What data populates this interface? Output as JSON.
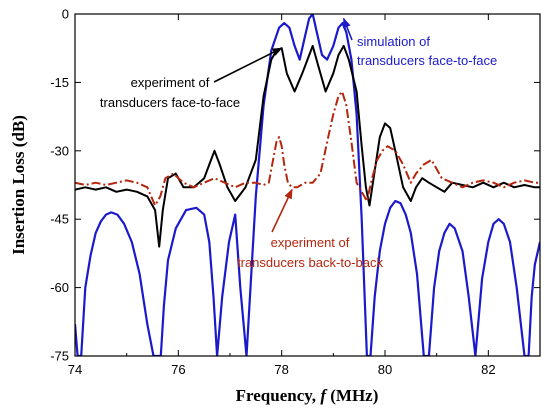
{
  "chart_data": {
    "type": "line",
    "xlabel_prefix": "Frequency, ",
    "xlabel_var": "f",
    "xlabel_suffix": " (MHz)",
    "ylabel": "Insertion Loss (dB)",
    "xlim": [
      74,
      83
    ],
    "ylim": [
      -75,
      0
    ],
    "xticks": [
      74,
      76,
      78,
      80,
      82
    ],
    "yticks": [
      0,
      -15,
      -30,
      -45,
      -60,
      -75
    ],
    "grid": false,
    "annotations": [
      {
        "line1": "simulation of",
        "line2": "transducers face-to-face",
        "color": "#1a1acc",
        "points_to": [
          79.2,
          -1
        ]
      },
      {
        "line1": "experiment of",
        "line2": "transducers face-to-face",
        "color": "#000000",
        "points_to": [
          78.0,
          -7.5
        ]
      },
      {
        "line1": "experiment of",
        "line2": "transducers back-to-back",
        "color": "#b5260f",
        "points_to": [
          78.2,
          -38.5
        ]
      }
    ],
    "series": [
      {
        "color": "#1a1acc",
        "style": "solid",
        "x": [
          74.0,
          74.05,
          74.12,
          74.2,
          74.3,
          74.4,
          74.5,
          74.6,
          74.7,
          74.82,
          74.95,
          75.1,
          75.25,
          75.4,
          75.52,
          75.6,
          75.66,
          75.72,
          75.8,
          75.95,
          76.15,
          76.35,
          76.5,
          76.6,
          76.68,
          76.75,
          76.85,
          76.98,
          77.1,
          77.2,
          77.32,
          77.5,
          77.65,
          77.8,
          77.95,
          78.05,
          78.15,
          78.25,
          78.35,
          78.45,
          78.53,
          78.6,
          78.68,
          78.78,
          78.88,
          79.0,
          79.1,
          79.18,
          79.25,
          79.35,
          79.45,
          79.55,
          79.65,
          79.72,
          79.8,
          79.9,
          80.0,
          80.1,
          80.2,
          80.3,
          80.4,
          80.5,
          80.62,
          80.75,
          80.85,
          80.95,
          81.05,
          81.15,
          81.25,
          81.35,
          81.5,
          81.62,
          81.75,
          81.88,
          82.0,
          82.1,
          82.2,
          82.3,
          82.42,
          82.55,
          82.7,
          82.78,
          82.84,
          82.9,
          83.0
        ],
        "y": [
          -68,
          -75,
          -75,
          -60,
          -53,
          -48,
          -45.5,
          -44,
          -43.5,
          -44,
          -46,
          -50,
          -57,
          -68,
          -75,
          -75,
          -75,
          -64,
          -54,
          -47,
          -43,
          -42.5,
          -44,
          -50,
          -62,
          -75,
          -62,
          -50,
          -44,
          -60,
          -75,
          -40,
          -20,
          -8,
          -3,
          -2,
          -3,
          -7,
          -10,
          -5,
          -1,
          0,
          -4,
          -9,
          -10,
          -7,
          -3,
          -2,
          -4,
          -10,
          -22,
          -45,
          -75,
          -75,
          -62,
          -52,
          -46,
          -42.5,
          -41,
          -41.5,
          -44,
          -48,
          -57,
          -75,
          -75,
          -60,
          -52,
          -48,
          -46,
          -47,
          -52,
          -62,
          -75,
          -58,
          -50,
          -46,
          -45,
          -46,
          -50,
          -60,
          -75,
          -75,
          -62,
          -55,
          -50
        ]
      },
      {
        "color": "#000000",
        "style": "solid",
        "x": [
          74.0,
          74.2,
          74.4,
          74.6,
          74.8,
          75.0,
          75.2,
          75.4,
          75.55,
          75.63,
          75.7,
          75.8,
          75.95,
          76.1,
          76.3,
          76.5,
          76.6,
          76.7,
          76.8,
          76.95,
          77.1,
          77.3,
          77.5,
          77.65,
          77.8,
          77.9,
          78.0,
          78.1,
          78.25,
          78.4,
          78.5,
          78.6,
          78.7,
          78.85,
          79.0,
          79.1,
          79.2,
          79.3,
          79.45,
          79.55,
          79.63,
          79.7,
          79.78,
          79.9,
          80.0,
          80.1,
          80.2,
          80.35,
          80.5,
          80.6,
          80.72,
          80.85,
          81.0,
          81.15,
          81.3,
          81.5,
          81.7,
          81.9,
          82.1,
          82.3,
          82.5,
          82.7,
          82.9,
          83.0
        ],
        "y": [
          -38.5,
          -38,
          -38.5,
          -38,
          -39,
          -38.5,
          -39,
          -40,
          -43,
          -51,
          -43,
          -36,
          -35,
          -38,
          -38,
          -36,
          -33,
          -30,
          -33,
          -38,
          -41,
          -38,
          -32,
          -18,
          -10,
          -8,
          -7.5,
          -13,
          -17,
          -13,
          -10,
          -7,
          -11,
          -17,
          -13,
          -9,
          -7,
          -10,
          -17,
          -29,
          -38,
          -42,
          -36,
          -27,
          -24,
          -25,
          -30,
          -38,
          -41,
          -38,
          -36,
          -37,
          -38,
          -39,
          -37,
          -37.5,
          -38,
          -37,
          -38,
          -37,
          -38,
          -37.5,
          -38,
          -38
        ]
      },
      {
        "color": "#b5260f",
        "style": "dashdot",
        "x": [
          74.0,
          74.2,
          74.4,
          74.6,
          74.8,
          75.0,
          75.2,
          75.4,
          75.55,
          75.65,
          75.75,
          75.9,
          76.1,
          76.3,
          76.5,
          76.7,
          76.9,
          77.1,
          77.3,
          77.5,
          77.65,
          77.75,
          77.85,
          77.9,
          77.95,
          78.0,
          78.05,
          78.12,
          78.2,
          78.3,
          78.45,
          78.6,
          78.75,
          78.9,
          79.0,
          79.1,
          79.17,
          79.25,
          79.35,
          79.45,
          79.55,
          79.65,
          79.75,
          79.85,
          79.95,
          80.05,
          80.2,
          80.35,
          80.5,
          80.6,
          80.75,
          80.9,
          81.1,
          81.3,
          81.5,
          81.7,
          81.9,
          82.1,
          82.3,
          82.5,
          82.7,
          82.9,
          83.0
        ],
        "y": [
          -37,
          -37.5,
          -37,
          -37.5,
          -37,
          -36.5,
          -37,
          -38,
          -42,
          -40,
          -36,
          -35,
          -37,
          -38,
          -37,
          -36,
          -37,
          -38,
          -37,
          -37,
          -37.5,
          -37,
          -31,
          -28,
          -27,
          -29,
          -33,
          -37,
          -38,
          -38,
          -37,
          -37,
          -35,
          -27,
          -22,
          -18,
          -17,
          -20,
          -28,
          -37,
          -39,
          -41,
          -36,
          -32,
          -30,
          -29,
          -30,
          -33,
          -37,
          -35,
          -33,
          -32,
          -36,
          -37,
          -38,
          -37,
          -36.5,
          -37,
          -38,
          -37,
          -36.5,
          -37,
          -37
        ]
      }
    ]
  }
}
